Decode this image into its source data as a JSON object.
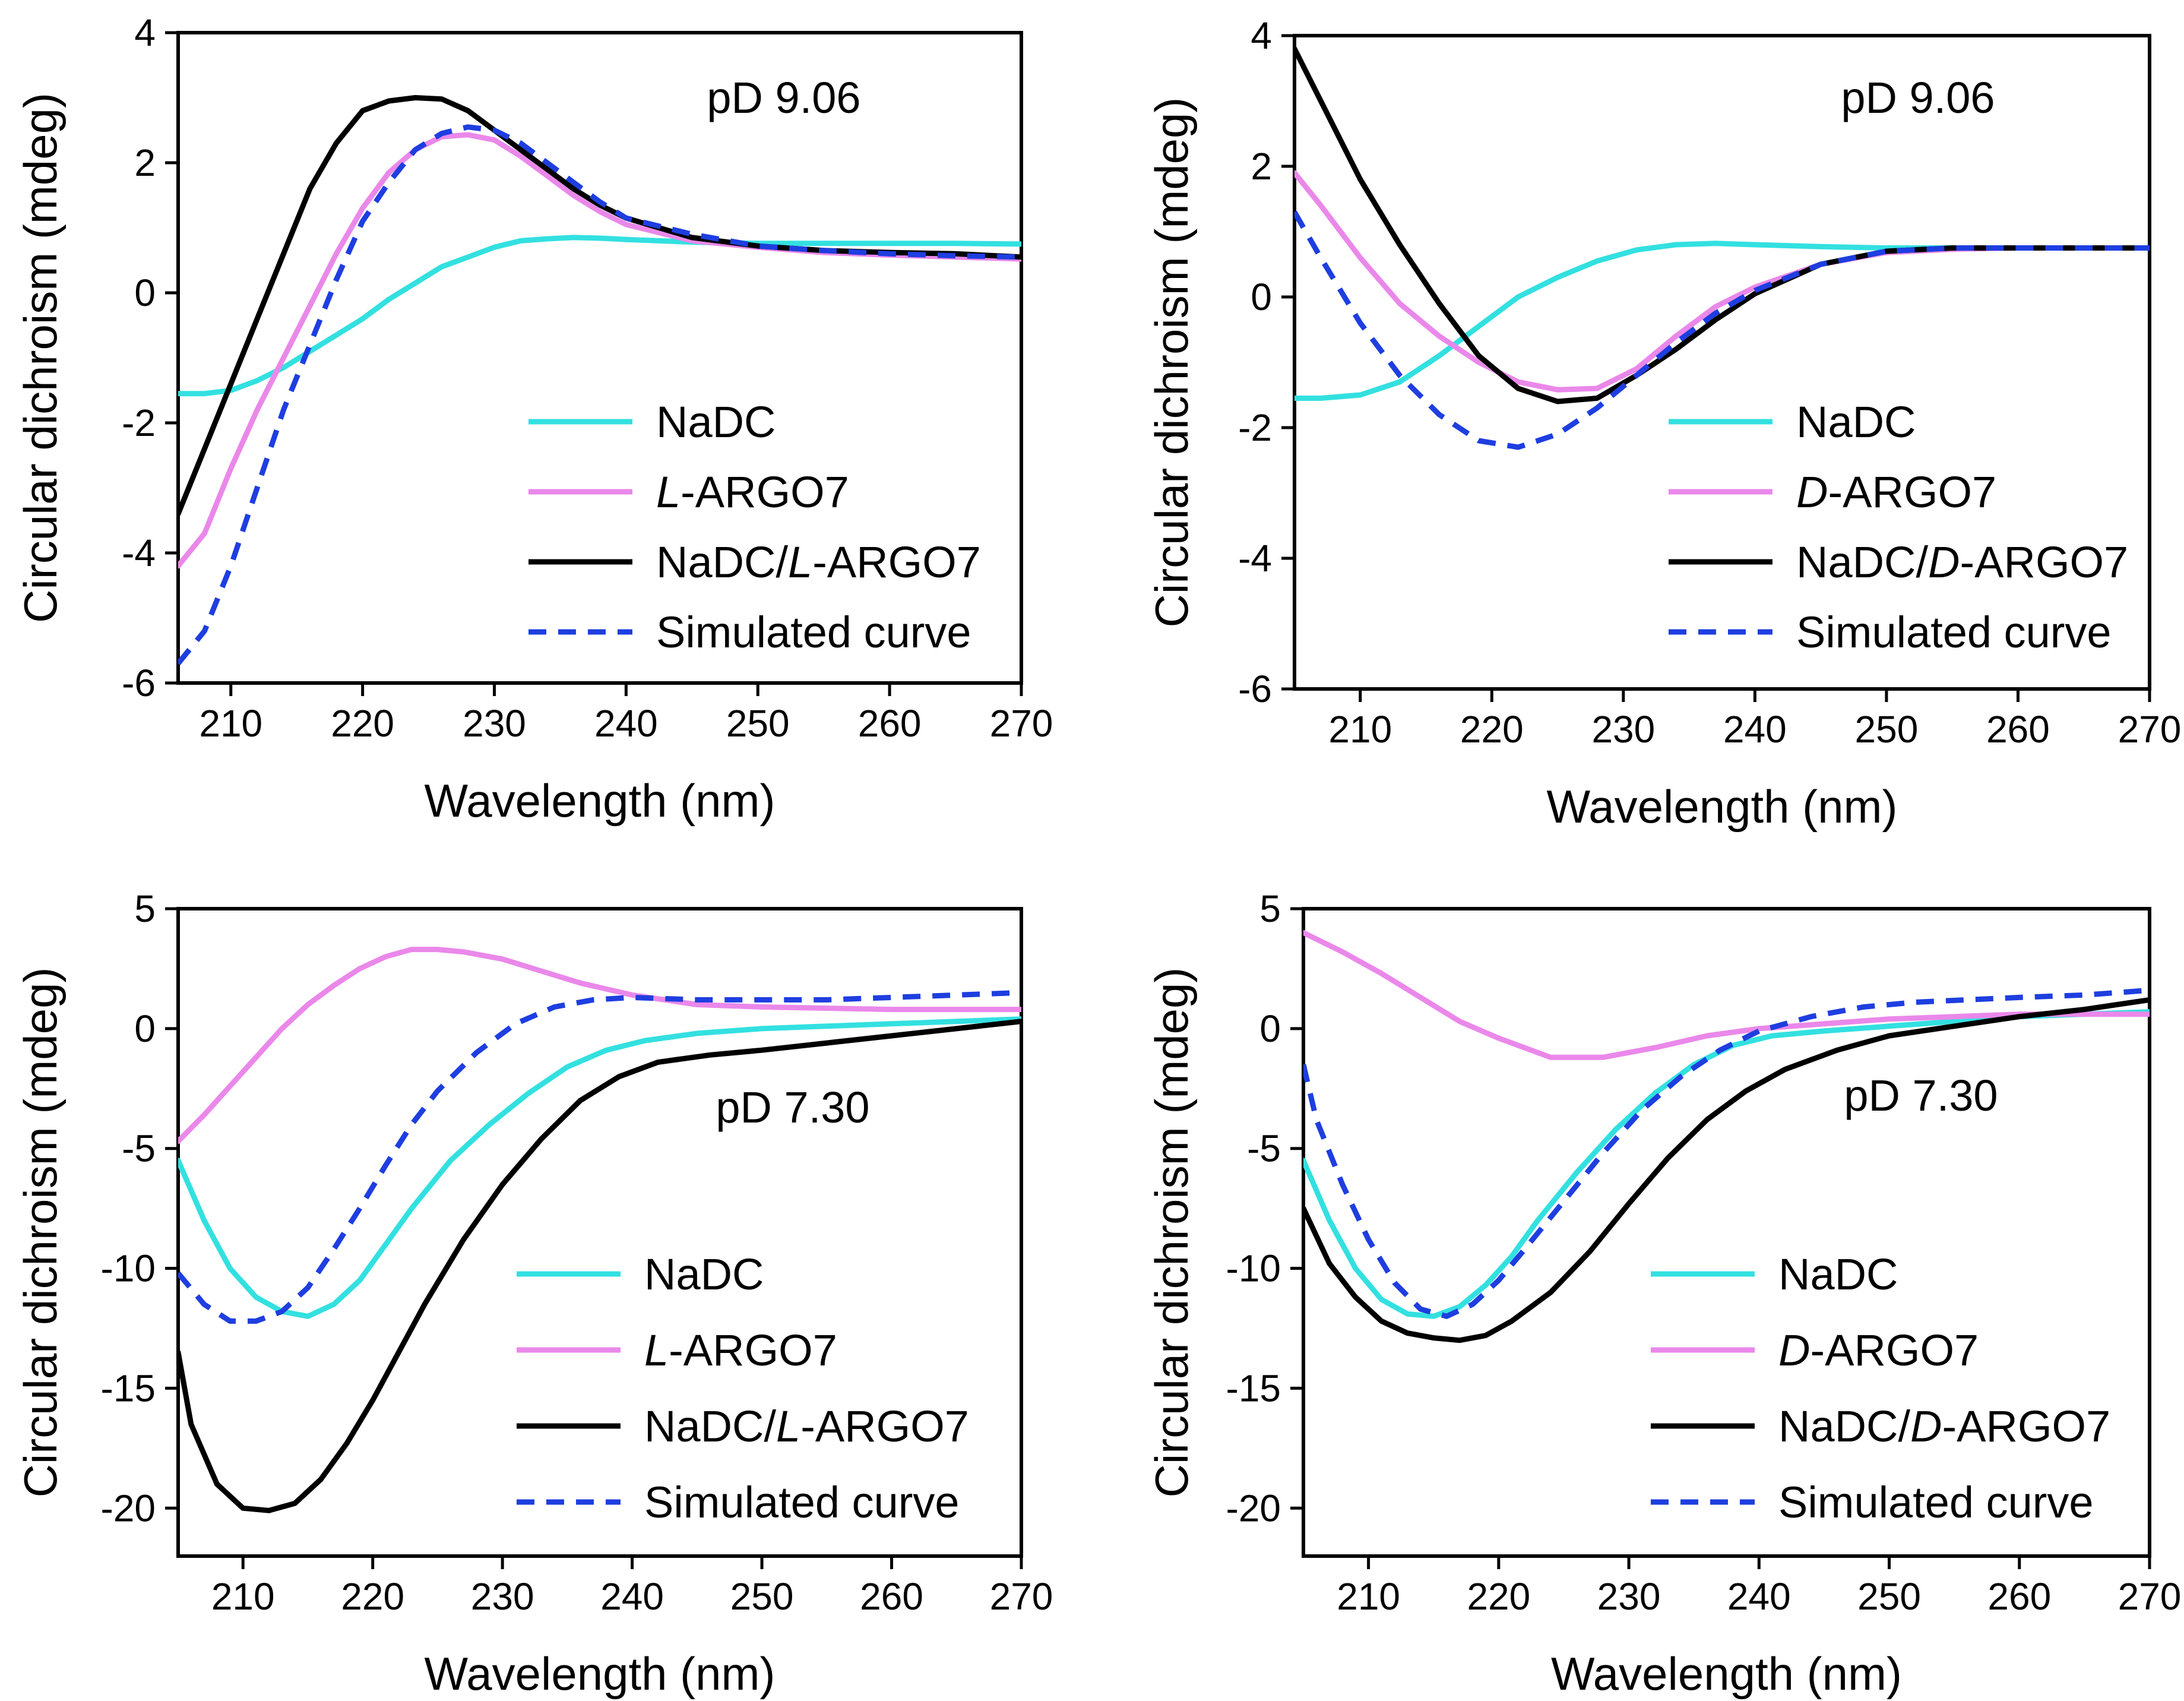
{
  "chart_data": [
    {
      "type": "line",
      "panel": "top-left",
      "annotation": "pD 9.06",
      "xlabel": "Wavelength (nm)",
      "ylabel": "Circular dichroism (mdeg)",
      "xlim": [
        206,
        270
      ],
      "ylim": [
        -6,
        4
      ],
      "xticks": [
        210,
        220,
        230,
        240,
        250,
        260,
        270
      ],
      "yticks": [
        -6,
        -4,
        -2,
        0,
        2,
        4
      ],
      "legend_position": "lower-right",
      "series": [
        {
          "name": "NaDC",
          "color": "#33e0e0",
          "style": "solid",
          "x": [
            206,
            208,
            210,
            212,
            214,
            216,
            218,
            220,
            222,
            224,
            226,
            228,
            230,
            232,
            234,
            236,
            238,
            240,
            245,
            250,
            255,
            260,
            265,
            270
          ],
          "y": [
            -1.55,
            -1.55,
            -1.5,
            -1.35,
            -1.15,
            -0.9,
            -0.65,
            -0.4,
            -0.1,
            0.15,
            0.4,
            0.55,
            0.7,
            0.8,
            0.83,
            0.85,
            0.84,
            0.82,
            0.78,
            0.76,
            0.76,
            0.76,
            0.76,
            0.75
          ]
        },
        {
          "name": "L-ARGO7",
          "name_prefix": "L",
          "name_suffix": "-ARGO7",
          "color": "#ea88ea",
          "style": "solid",
          "x": [
            206,
            208,
            210,
            212,
            214,
            216,
            218,
            220,
            222,
            224,
            226,
            228,
            230,
            232,
            234,
            236,
            238,
            240,
            245,
            250,
            255,
            260,
            265,
            270
          ],
          "y": [
            -4.2,
            -3.7,
            -2.7,
            -1.8,
            -1.0,
            -0.2,
            0.6,
            1.3,
            1.85,
            2.2,
            2.4,
            2.43,
            2.35,
            2.1,
            1.8,
            1.5,
            1.25,
            1.05,
            0.8,
            0.7,
            0.62,
            0.58,
            0.55,
            0.52
          ]
        },
        {
          "name": "NaDC/L-ARGO7",
          "name_prefix": "NaDC/",
          "name_italic": "L",
          "name_suffix": "-ARGO7",
          "color": "#000000",
          "style": "solid",
          "x": [
            206,
            208,
            210,
            212,
            214,
            216,
            218,
            220,
            222,
            224,
            226,
            228,
            230,
            232,
            234,
            236,
            238,
            240,
            245,
            250,
            255,
            260,
            265,
            270
          ],
          "y": [
            -3.4,
            -2.4,
            -1.4,
            -0.4,
            0.6,
            1.6,
            2.3,
            2.8,
            2.95,
            3.0,
            2.98,
            2.8,
            2.5,
            2.2,
            1.9,
            1.6,
            1.35,
            1.15,
            0.85,
            0.72,
            0.65,
            0.62,
            0.6,
            0.55
          ]
        },
        {
          "name": "Simulated curve",
          "color": "#1e3ee0",
          "style": "dashed",
          "x": [
            206,
            208,
            210,
            212,
            214,
            216,
            218,
            220,
            222,
            224,
            226,
            228,
            230,
            232,
            234,
            236,
            238,
            240,
            245,
            250,
            255,
            260,
            265,
            270
          ],
          "y": [
            -5.7,
            -5.2,
            -4.2,
            -3.0,
            -1.8,
            -0.8,
            0.2,
            1.1,
            1.7,
            2.2,
            2.45,
            2.55,
            2.5,
            2.3,
            2.0,
            1.7,
            1.4,
            1.15,
            0.9,
            0.72,
            0.65,
            0.6,
            0.57,
            0.55
          ]
        }
      ]
    },
    {
      "type": "line",
      "panel": "top-right",
      "annotation": "pD 9.06",
      "xlabel": "Wavelength (nm)",
      "ylabel": "Circular dichroism (mdeg)",
      "xlim": [
        205,
        270
      ],
      "ylim": [
        -6,
        4
      ],
      "xticks": [
        210,
        220,
        230,
        240,
        250,
        260,
        270
      ],
      "yticks": [
        -6,
        -4,
        -2,
        0,
        2,
        4
      ],
      "legend_position": "lower-right",
      "series": [
        {
          "name": "NaDC",
          "color": "#33e0e0",
          "style": "solid",
          "x": [
            205,
            207,
            210,
            213,
            216,
            219,
            222,
            225,
            228,
            231,
            234,
            237,
            240,
            245,
            250,
            255,
            260,
            265,
            270
          ],
          "y": [
            -1.55,
            -1.55,
            -1.5,
            -1.3,
            -0.9,
            -0.45,
            0.0,
            0.3,
            0.55,
            0.72,
            0.8,
            0.82,
            0.8,
            0.77,
            0.75,
            0.75,
            0.75,
            0.75,
            0.75
          ]
        },
        {
          "name": "D-ARGO7",
          "name_prefix": "D",
          "name_suffix": "-ARGO7",
          "color": "#ea88ea",
          "style": "solid",
          "x": [
            205,
            207,
            210,
            213,
            216,
            219,
            222,
            225,
            228,
            231,
            234,
            237,
            240,
            245,
            250,
            255,
            260,
            265,
            270
          ],
          "y": [
            1.9,
            1.4,
            0.6,
            -0.1,
            -0.6,
            -1.0,
            -1.3,
            -1.42,
            -1.4,
            -1.1,
            -0.6,
            -0.15,
            0.15,
            0.5,
            0.68,
            0.73,
            0.75,
            0.75,
            0.75
          ]
        },
        {
          "name": "NaDC/D-ARGO7",
          "name_prefix": "NaDC/",
          "name_italic": "D",
          "name_suffix": "-ARGO7",
          "color": "#000000",
          "style": "solid",
          "x": [
            205,
            207,
            210,
            213,
            216,
            219,
            222,
            225,
            228,
            231,
            234,
            237,
            240,
            245,
            250,
            255,
            260,
            265,
            270
          ],
          "y": [
            3.8,
            3.0,
            1.8,
            0.8,
            -0.1,
            -0.9,
            -1.4,
            -1.6,
            -1.55,
            -1.2,
            -0.8,
            -0.35,
            0.05,
            0.5,
            0.7,
            0.75,
            0.75,
            0.75,
            0.75
          ]
        },
        {
          "name": "Simulated curve",
          "color": "#1e3ee0",
          "style": "dashed",
          "x": [
            205,
            207,
            210,
            213,
            216,
            219,
            222,
            225,
            228,
            231,
            234,
            237,
            240,
            245,
            250,
            255,
            260,
            265,
            270
          ],
          "y": [
            1.3,
            0.6,
            -0.4,
            -1.2,
            -1.8,
            -2.2,
            -2.3,
            -2.1,
            -1.7,
            -1.2,
            -0.7,
            -0.25,
            0.1,
            0.5,
            0.7,
            0.75,
            0.75,
            0.75,
            0.75
          ]
        }
      ]
    },
    {
      "type": "line",
      "panel": "bottom-left",
      "annotation": "pD 7.30",
      "xlabel": "Wavelength (nm)",
      "ylabel": "Circular dichroism (mdeg)",
      "xlim": [
        205,
        270
      ],
      "ylim": [
        -22,
        5
      ],
      "xticks": [
        210,
        220,
        230,
        240,
        250,
        260,
        270
      ],
      "yticks": [
        -20,
        -15,
        -10,
        -5,
        0,
        5
      ],
      "legend_position": "lower-right",
      "series": [
        {
          "name": "NaDC",
          "color": "#33e0e0",
          "style": "solid",
          "x": [
            205,
            207,
            209,
            211,
            213,
            215,
            217,
            219,
            221,
            223,
            226,
            229,
            232,
            235,
            238,
            241,
            245,
            250,
            255,
            260,
            265,
            270
          ],
          "y": [
            -5.5,
            -8.0,
            -10.0,
            -11.2,
            -11.8,
            -12.0,
            -11.5,
            -10.5,
            -9.0,
            -7.5,
            -5.5,
            -4.0,
            -2.7,
            -1.6,
            -0.9,
            -0.5,
            -0.2,
            0.0,
            0.1,
            0.2,
            0.3,
            0.4
          ]
        },
        {
          "name": "L-ARGO7",
          "name_prefix": "L",
          "name_suffix": "-ARGO7",
          "color": "#ea88ea",
          "style": "solid",
          "x": [
            205,
            207,
            209,
            211,
            213,
            215,
            217,
            219,
            221,
            223,
            225,
            227,
            230,
            233,
            236,
            240,
            245,
            250,
            255,
            260,
            265,
            270
          ],
          "y": [
            -4.7,
            -3.6,
            -2.4,
            -1.2,
            0.0,
            1.0,
            1.8,
            2.5,
            3.0,
            3.3,
            3.3,
            3.2,
            2.9,
            2.4,
            1.9,
            1.4,
            1.0,
            0.9,
            0.85,
            0.8,
            0.8,
            0.8
          ]
        },
        {
          "name": "NaDC/L-ARGO7",
          "name_prefix": "NaDC/",
          "name_italic": "L",
          "name_suffix": "-ARGO7",
          "color": "#000000",
          "style": "solid",
          "x": [
            205,
            206,
            208,
            210,
            212,
            214,
            216,
            218,
            220,
            222,
            224,
            227,
            230,
            233,
            236,
            239,
            242,
            246,
            250,
            255,
            260,
            265,
            270
          ],
          "y": [
            -13.5,
            -16.5,
            -19.0,
            -20.0,
            -20.1,
            -19.8,
            -18.8,
            -17.3,
            -15.5,
            -13.5,
            -11.5,
            -8.8,
            -6.5,
            -4.6,
            -3.0,
            -2.0,
            -1.4,
            -1.1,
            -0.9,
            -0.6,
            -0.3,
            0.0,
            0.3
          ]
        },
        {
          "name": "Simulated curve",
          "color": "#1e3ee0",
          "style": "dashed",
          "x": [
            205,
            207,
            209,
            211,
            213,
            215,
            217,
            219,
            221,
            223,
            225,
            228,
            231,
            234,
            237,
            240,
            245,
            250,
            255,
            260,
            265,
            270
          ],
          "y": [
            -10.2,
            -11.5,
            -12.2,
            -12.2,
            -11.8,
            -10.8,
            -9.2,
            -7.5,
            -5.7,
            -4.0,
            -2.6,
            -1.0,
            0.2,
            0.9,
            1.2,
            1.3,
            1.2,
            1.2,
            1.2,
            1.3,
            1.4,
            1.5
          ]
        }
      ]
    },
    {
      "type": "line",
      "panel": "bottom-right",
      "annotation": "pD 7.30",
      "xlabel": "Wavelength (nm)",
      "ylabel": "Circular dichroism (mdeg)",
      "xlim": [
        205,
        270
      ],
      "ylim": [
        -22,
        5
      ],
      "xticks": [
        210,
        220,
        230,
        240,
        250,
        260,
        270
      ],
      "yticks": [
        -20,
        -15,
        -10,
        -5,
        0,
        5
      ],
      "legend_position": "lower-right",
      "series": [
        {
          "name": "NaDC",
          "color": "#33e0e0",
          "style": "solid",
          "x": [
            205,
            207,
            209,
            211,
            213,
            215,
            217,
            219,
            221,
            223,
            226,
            229,
            232,
            235,
            238,
            241,
            245,
            250,
            255,
            260,
            265,
            270
          ],
          "y": [
            -5.5,
            -8.0,
            -10.0,
            -11.3,
            -11.9,
            -12.0,
            -11.6,
            -10.7,
            -9.5,
            -8.0,
            -6.0,
            -4.2,
            -2.7,
            -1.5,
            -0.7,
            -0.3,
            -0.1,
            0.1,
            0.3,
            0.5,
            0.6,
            0.7
          ]
        },
        {
          "name": "D-ARGO7",
          "name_prefix": "D",
          "name_suffix": "-ARGO7",
          "color": "#ea88ea",
          "style": "solid",
          "x": [
            205,
            208,
            211,
            214,
            217,
            220,
            224,
            228,
            232,
            236,
            240,
            245,
            250,
            255,
            260,
            265,
            270
          ],
          "y": [
            4.0,
            3.2,
            2.3,
            1.3,
            0.3,
            -0.4,
            -1.2,
            -1.2,
            -0.8,
            -0.3,
            0.0,
            0.2,
            0.4,
            0.5,
            0.6,
            0.6,
            0.6
          ]
        },
        {
          "name": "NaDC/D-ARGO7",
          "name_prefix": "NaDC/",
          "name_italic": "D",
          "name_suffix": "-ARGO7",
          "color": "#000000",
          "style": "solid",
          "x": [
            205,
            207,
            209,
            211,
            213,
            215,
            217,
            219,
            221,
            224,
            227,
            230,
            233,
            236,
            239,
            242,
            246,
            250,
            255,
            260,
            265,
            270
          ],
          "y": [
            -7.5,
            -9.8,
            -11.2,
            -12.2,
            -12.7,
            -12.9,
            -13.0,
            -12.8,
            -12.2,
            -11.0,
            -9.3,
            -7.3,
            -5.4,
            -3.8,
            -2.6,
            -1.7,
            -0.9,
            -0.3,
            0.1,
            0.5,
            0.8,
            1.2
          ]
        },
        {
          "name": "Simulated curve",
          "color": "#1e3ee0",
          "style": "dashed",
          "x": [
            205,
            206,
            208,
            210,
            212,
            214,
            216,
            218,
            220,
            222,
            225,
            228,
            231,
            234,
            237,
            240,
            244,
            248,
            252,
            256,
            260,
            265,
            270
          ],
          "y": [
            -1.5,
            -3.8,
            -6.5,
            -8.8,
            -10.6,
            -11.7,
            -12.0,
            -11.5,
            -10.5,
            -9.2,
            -7.2,
            -5.2,
            -3.4,
            -2.0,
            -0.9,
            -0.1,
            0.5,
            0.9,
            1.1,
            1.2,
            1.3,
            1.4,
            1.6
          ]
        }
      ]
    }
  ]
}
